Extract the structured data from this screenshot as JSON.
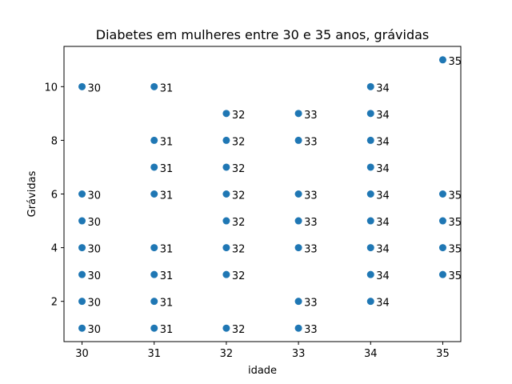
{
  "chart_data": {
    "type": "scatter",
    "title": "Diabetes em mulheres entre 30 e 35 anos, grávidas",
    "xlabel": "idade",
    "ylabel": "Grávidas",
    "xlim": [
      29.75,
      35.25
    ],
    "ylim": [
      0.5,
      11.5
    ],
    "xticks": [
      30,
      31,
      32,
      33,
      34,
      35
    ],
    "yticks": [
      2,
      4,
      6,
      8,
      10
    ],
    "grid": false,
    "marker_color": "#1f77b4",
    "points": [
      {
        "x": 30,
        "y": 10
      },
      {
        "x": 30,
        "y": 6
      },
      {
        "x": 30,
        "y": 5
      },
      {
        "x": 30,
        "y": 4
      },
      {
        "x": 30,
        "y": 3
      },
      {
        "x": 30,
        "y": 2
      },
      {
        "x": 30,
        "y": 1
      },
      {
        "x": 31,
        "y": 10
      },
      {
        "x": 31,
        "y": 8
      },
      {
        "x": 31,
        "y": 7
      },
      {
        "x": 31,
        "y": 6
      },
      {
        "x": 31,
        "y": 4
      },
      {
        "x": 31,
        "y": 3
      },
      {
        "x": 31,
        "y": 2
      },
      {
        "x": 31,
        "y": 1
      },
      {
        "x": 32,
        "y": 9
      },
      {
        "x": 32,
        "y": 8
      },
      {
        "x": 32,
        "y": 7
      },
      {
        "x": 32,
        "y": 6
      },
      {
        "x": 32,
        "y": 5
      },
      {
        "x": 32,
        "y": 4
      },
      {
        "x": 32,
        "y": 3
      },
      {
        "x": 32,
        "y": 1
      },
      {
        "x": 33,
        "y": 9
      },
      {
        "x": 33,
        "y": 8
      },
      {
        "x": 33,
        "y": 6
      },
      {
        "x": 33,
        "y": 5
      },
      {
        "x": 33,
        "y": 4
      },
      {
        "x": 33,
        "y": 2
      },
      {
        "x": 33,
        "y": 1
      },
      {
        "x": 34,
        "y": 10
      },
      {
        "x": 34,
        "y": 9
      },
      {
        "x": 34,
        "y": 8
      },
      {
        "x": 34,
        "y": 7
      },
      {
        "x": 34,
        "y": 6
      },
      {
        "x": 34,
        "y": 5
      },
      {
        "x": 34,
        "y": 4
      },
      {
        "x": 34,
        "y": 3
      },
      {
        "x": 34,
        "y": 2
      },
      {
        "x": 35,
        "y": 11
      },
      {
        "x": 35,
        "y": 6
      },
      {
        "x": 35,
        "y": 5
      },
      {
        "x": 35,
        "y": 4
      },
      {
        "x": 35,
        "y": 3
      }
    ]
  }
}
